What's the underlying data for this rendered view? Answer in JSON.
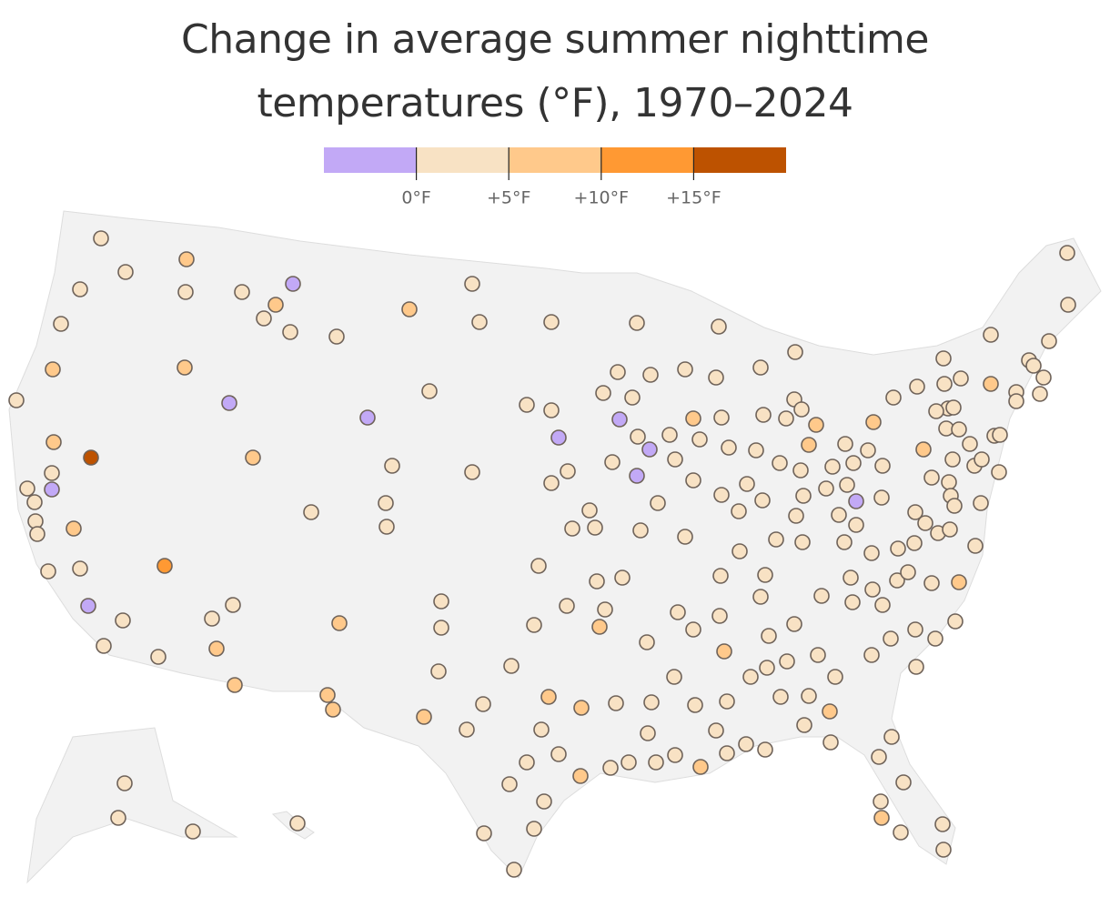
{
  "chart_data": {
    "type": "map",
    "title": "Change in average summer nighttime temperatures (°F), 1970–2024",
    "legend": {
      "colors": [
        "#c2a9f6",
        "#f8e2c4",
        "#ffc98b",
        "#ff9933",
        "#bd5200"
      ],
      "ticks": [
        {
          "value": 0,
          "label": "0°F"
        },
        {
          "value": 5,
          "label": "+5°F"
        },
        {
          "value": 10,
          "label": "+10°F"
        },
        {
          "value": 15,
          "label": "+15°F"
        }
      ]
    }
  }
}
